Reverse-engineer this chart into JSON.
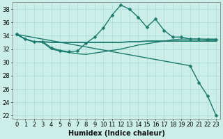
{
  "xlabel": "Humidex (Indice chaleur)",
  "background_color": "#cceee8",
  "grid_color": "#aaddd4",
  "line_color": "#1a7a6e",
  "xlim": [
    -0.5,
    23.5
  ],
  "ylim": [
    21.5,
    39
  ],
  "yticks": [
    22,
    24,
    26,
    28,
    30,
    32,
    34,
    36,
    38
  ],
  "xticks": [
    0,
    1,
    2,
    3,
    4,
    5,
    6,
    7,
    8,
    9,
    10,
    11,
    12,
    13,
    14,
    15,
    16,
    17,
    18,
    19,
    20,
    21,
    22,
    23
  ],
  "series": [
    {
      "x": [
        0,
        1,
        2,
        3,
        4,
        5,
        6,
        7,
        8,
        9,
        10,
        11,
        12,
        13,
        14,
        15,
        16,
        17,
        18,
        19,
        20,
        21,
        22,
        23
      ],
      "y": [
        34.2,
        33.5,
        33.1,
        33.1,
        32.2,
        31.8,
        31.6,
        31.7,
        32.9,
        33.8,
        35.2,
        37.1,
        38.6,
        38.0,
        36.8,
        35.3,
        36.5,
        34.8,
        33.8,
        33.8,
        33.5,
        33.5,
        33.4,
        33.4
      ],
      "marker": "D",
      "markersize": 2.5,
      "linewidth": 1.0,
      "has_marker": true
    },
    {
      "x": [
        0,
        1,
        2,
        3,
        4,
        5,
        6,
        7,
        8,
        9,
        10,
        11,
        12,
        13,
        14,
        15,
        16,
        17,
        18,
        19,
        20,
        21,
        22,
        23
      ],
      "y": [
        34.2,
        33.5,
        33.1,
        33.1,
        33.0,
        33.0,
        33.0,
        33.0,
        33.0,
        33.0,
        33.0,
        33.0,
        33.0,
        33.1,
        33.1,
        33.2,
        33.2,
        33.2,
        33.2,
        33.2,
        33.2,
        33.2,
        33.2,
        33.2
      ],
      "marker": null,
      "markersize": 0,
      "linewidth": 1.3,
      "has_marker": false
    },
    {
      "x": [
        0,
        1,
        2,
        3,
        4,
        5,
        6,
        7,
        8,
        9,
        10,
        11,
        12,
        13,
        14,
        15,
        16,
        17,
        18,
        19,
        20,
        21,
        22,
        23
      ],
      "y": [
        34.2,
        33.5,
        33.1,
        33.0,
        32.0,
        31.7,
        31.5,
        31.3,
        31.2,
        31.4,
        31.6,
        31.8,
        32.0,
        32.3,
        32.6,
        32.8,
        33.0,
        33.2,
        33.4,
        33.5,
        33.5,
        33.5,
        33.5,
        33.5
      ],
      "marker": null,
      "markersize": 0,
      "linewidth": 1.0,
      "has_marker": false
    },
    {
      "x": [
        0,
        20,
        21,
        22,
        23
      ],
      "y": [
        34.2,
        29.5,
        27.0,
        25.0,
        22.0
      ],
      "marker": "D",
      "markersize": 2.5,
      "linewidth": 1.0,
      "has_marker": true
    }
  ],
  "font_size": 7,
  "tick_label_size": 6
}
